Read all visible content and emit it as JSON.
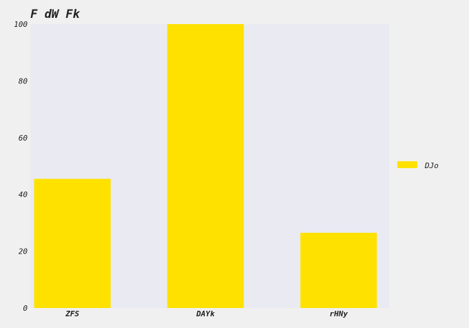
{
  "chart_data": {
    "type": "bar",
    "title": "F  dW Fk",
    "categories": [
      "ZFS",
      "DAYk",
      "rHNy"
    ],
    "series": [
      {
        "name": "DJo",
        "values": [
          45.5,
          100,
          26.5
        ],
        "color": "#ffe100"
      }
    ],
    "ylim": [
      0,
      100
    ],
    "yticks": [
      0,
      20,
      40,
      60,
      80,
      100
    ],
    "grid": false,
    "legend_position": "right",
    "plot_background": "#eaeaf2"
  }
}
